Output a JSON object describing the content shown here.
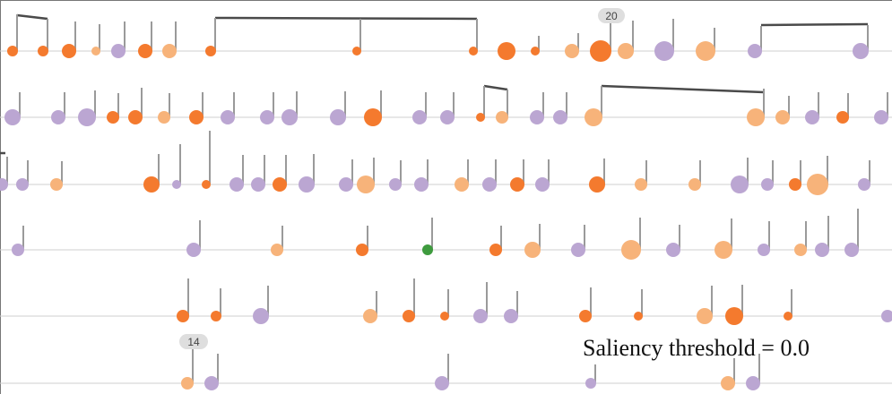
{
  "caption": "Saliency threshold = 0.0",
  "colors": {
    "dark_orange": "#f47a2e",
    "light_orange": "#f7b37a",
    "purple": "#bba6d2",
    "green": "#3e9b3e"
  },
  "badges": [
    "20",
    "14"
  ]
}
